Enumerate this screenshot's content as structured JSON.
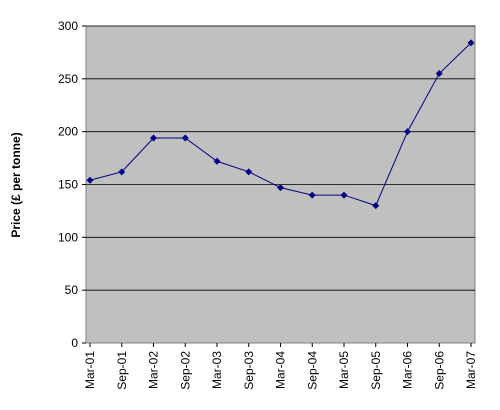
{
  "chart_data": {
    "type": "line",
    "title": "",
    "xlabel": "",
    "ylabel": "Price (£ per tonne)",
    "categories": [
      "Mar-01",
      "Sep-01",
      "Mar-02",
      "Sep-02",
      "Mar-03",
      "Sep-03",
      "Mar-04",
      "Sep-04",
      "Mar-05",
      "Sep-05",
      "Mar-06",
      "Sep-06",
      "Mar-07"
    ],
    "series": [
      {
        "values": [
          154,
          162,
          194,
          194,
          172,
          162,
          147,
          140,
          140,
          130,
          200,
          255,
          284
        ]
      }
    ],
    "ylim": [
      0,
      300
    ],
    "yticks": [
      0,
      50,
      100,
      150,
      200,
      250,
      300
    ],
    "grid": true,
    "plot_background": "#c0c0c0",
    "line_color": "#000080"
  }
}
